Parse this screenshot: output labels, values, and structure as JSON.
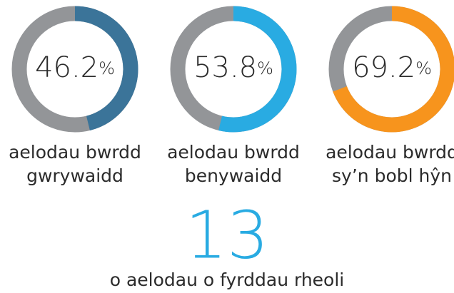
{
  "chart_data": [
    {
      "type": "donut",
      "value": 46.2,
      "unit": "%",
      "color": "#3b7499",
      "rest_color": "#939598",
      "label": [
        "aelodau bwrdd",
        "gwrywaidd"
      ]
    },
    {
      "type": "donut",
      "value": 53.8,
      "unit": "%",
      "color": "#29abe2",
      "rest_color": "#939598",
      "label": [
        "aelodau bwrdd",
        "benywaidd"
      ]
    },
    {
      "type": "donut",
      "value": 69.2,
      "unit": "%",
      "color": "#f7941d",
      "rest_color": "#939598",
      "label": [
        "aelodau bwrdd",
        "sy’n bobl hŷn"
      ]
    }
  ],
  "stat": {
    "value": 13,
    "color": "#29abe2",
    "label": "o aelodau o fyrddau rheoli"
  }
}
